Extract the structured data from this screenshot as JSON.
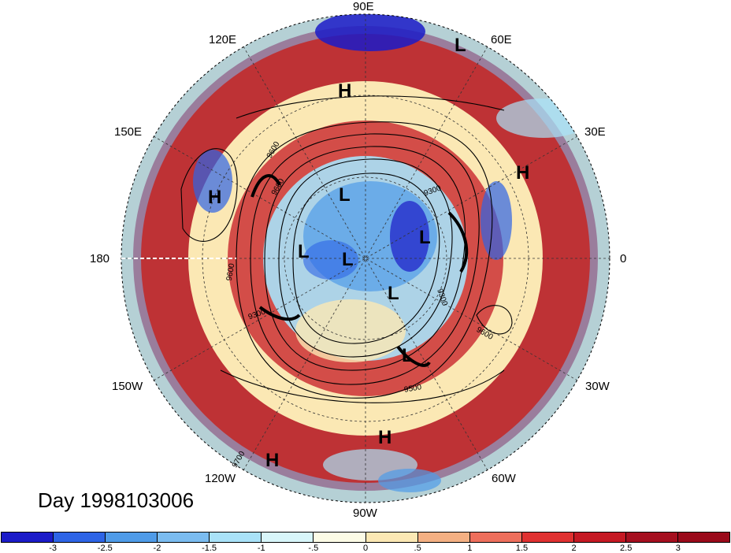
{
  "title": "Day 1998103006",
  "longitude_labels": {
    "top": "90E",
    "top_right": "60E",
    "top_left": "120E",
    "upper_left": "150E",
    "upper_right": "30E",
    "left": "180",
    "right": "0",
    "lower_left": "150W",
    "lower_right": "30W",
    "bottom_left": "120W",
    "bottom_right": "60W",
    "bottom": "90W"
  },
  "pressure_centers": [
    {
      "kind": "L",
      "name": "low-60e"
    },
    {
      "kind": "H",
      "name": "high-90e"
    },
    {
      "kind": "H",
      "name": "high-30e"
    },
    {
      "kind": "H",
      "name": "high-150e"
    },
    {
      "kind": "L",
      "name": "low-center-top"
    },
    {
      "kind": "L",
      "name": "low-center-left"
    },
    {
      "kind": "L",
      "name": "low-center"
    },
    {
      "kind": "L",
      "name": "low-center-right"
    },
    {
      "kind": "L",
      "name": "low-center-lower"
    },
    {
      "kind": "L",
      "name": "low-atlantic"
    },
    {
      "kind": "H",
      "name": "high-60w"
    },
    {
      "kind": "H",
      "name": "high-120w"
    }
  ],
  "contour_labels": [
    "9600",
    "9600",
    "9300",
    "9600",
    "9300",
    "9600",
    "9500",
    "9300",
    "9700"
  ],
  "colorbar": {
    "colors": [
      "#1b1bc8",
      "#2d64e6",
      "#4f9be8",
      "#7bbcf0",
      "#a9e2f8",
      "#d8f6fa",
      "#fcfbe6",
      "#fbe8b4",
      "#f4b083",
      "#ee6f5c",
      "#e03131",
      "#c51924",
      "#a50f1f",
      "#9a0a1a"
    ],
    "ticks": [
      "-3",
      "-2.5",
      "-2",
      "-1.5",
      "-1",
      "-.5",
      "0",
      ".5",
      "1",
      "1.5",
      "2",
      "2.5",
      "3"
    ]
  }
}
